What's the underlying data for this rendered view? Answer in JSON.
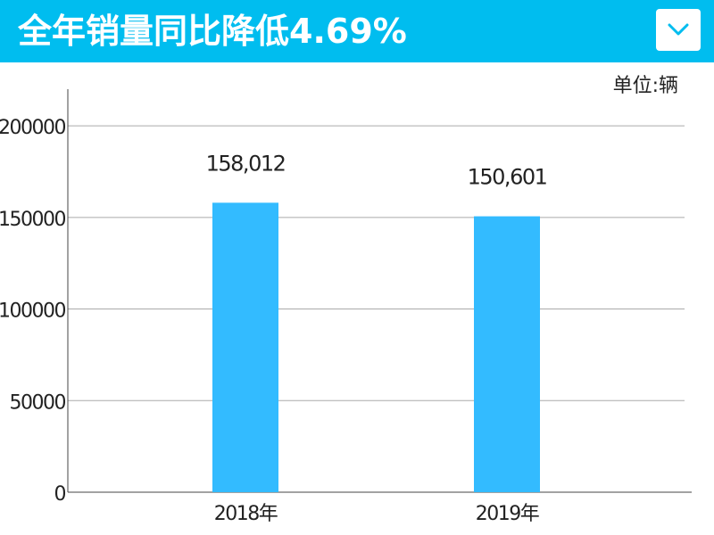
{
  "header": {
    "title": "全年销量同比降低4.69%",
    "background_color": "#00BDEF",
    "dropdown_icon": "chevron-down-icon"
  },
  "unit_label": "单位:辆",
  "chart_data": {
    "type": "bar",
    "categories": [
      "2018年",
      "2019年"
    ],
    "values": [
      158012,
      150601
    ],
    "data_labels": [
      "158,012",
      "150,601"
    ],
    "y_ticks": [
      "0",
      "50000",
      "100000",
      "150000",
      "200000"
    ],
    "ylim": [
      0,
      220000
    ],
    "grid": true,
    "bar_color": "#33BBFF",
    "gridline_color": "#AAAAAA"
  }
}
